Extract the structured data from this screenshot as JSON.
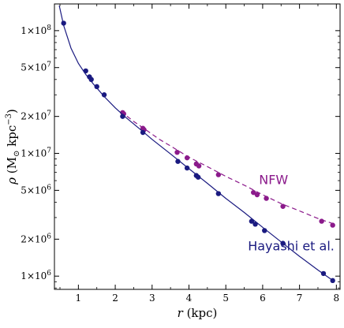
{
  "chart_data": {
    "type": "scatter",
    "xlabel": {
      "var": "r",
      "unit": "(kpc)"
    },
    "ylabel": {
      "var": "ρ",
      "unit": "(M",
      "sub": "⊙",
      "unit2": " kpc",
      "sup": "−3",
      "close": ")"
    },
    "xlim": [
      0.35,
      8.1
    ],
    "ylim": [
      780000,
      165000000
    ],
    "y_scale": "log",
    "grid": false,
    "x_ticks": [
      {
        "value": 1,
        "label": "1"
      },
      {
        "value": 2,
        "label": "2"
      },
      {
        "value": 3,
        "label": "3"
      },
      {
        "value": 4,
        "label": "4"
      },
      {
        "value": 5,
        "label": "5"
      },
      {
        "value": 6,
        "label": "6"
      },
      {
        "value": 7,
        "label": "7"
      },
      {
        "value": 8,
        "label": "8"
      }
    ],
    "y_ticks": [
      {
        "value": 1000000,
        "mant": "1",
        "exp": "6"
      },
      {
        "value": 2000000,
        "mant": "2",
        "exp": "6"
      },
      {
        "value": 5000000,
        "mant": "5",
        "exp": "6"
      },
      {
        "value": 10000000,
        "mant": "1",
        "exp": "7"
      },
      {
        "value": 20000000,
        "mant": "2",
        "exp": "7"
      },
      {
        "value": 50000000,
        "mant": "5",
        "exp": "7"
      },
      {
        "value": 100000000,
        "mant": "1",
        "exp": "8"
      }
    ],
    "series": [
      {
        "name": "NFW",
        "color": "#8b1a8b",
        "line_style": "dashed",
        "label_at": {
          "x": 5.9,
          "y": 5600000
        },
        "curve": [
          {
            "x": 2.15,
            "y": 22000000
          },
          {
            "x": 2.5,
            "y": 18200000
          },
          {
            "x": 2.8,
            "y": 15800000
          },
          {
            "x": 3.2,
            "y": 13000000
          },
          {
            "x": 3.5,
            "y": 11500000
          },
          {
            "x": 4.0,
            "y": 9300000
          },
          {
            "x": 4.5,
            "y": 7800000
          },
          {
            "x": 5.0,
            "y": 6500000
          },
          {
            "x": 5.5,
            "y": 5500000
          },
          {
            "x": 6.0,
            "y": 4600000
          },
          {
            "x": 6.5,
            "y": 3900000
          },
          {
            "x": 7.0,
            "y": 3400000
          },
          {
            "x": 7.5,
            "y": 2950000
          },
          {
            "x": 7.95,
            "y": 2650000
          }
        ],
        "points": [
          {
            "x": 2.2,
            "y": 21500000
          },
          {
            "x": 2.23,
            "y": 21000000
          },
          {
            "x": 2.75,
            "y": 16000000
          },
          {
            "x": 2.78,
            "y": 15600000
          },
          {
            "x": 3.68,
            "y": 10200000
          },
          {
            "x": 3.95,
            "y": 9200000
          },
          {
            "x": 4.2,
            "y": 8200000
          },
          {
            "x": 4.27,
            "y": 7900000
          },
          {
            "x": 4.8,
            "y": 6700000
          },
          {
            "x": 5.75,
            "y": 4800000
          },
          {
            "x": 5.85,
            "y": 4600000
          },
          {
            "x": 6.1,
            "y": 4300000
          },
          {
            "x": 6.55,
            "y": 3700000
          },
          {
            "x": 7.6,
            "y": 2800000
          },
          {
            "x": 7.9,
            "y": 2600000
          }
        ]
      },
      {
        "name": "Hayashi et al.",
        "color": "#1a1a80",
        "line_style": "solid",
        "label_at": {
          "x": 5.6,
          "y": 1620000
        },
        "curve": [
          {
            "x": 0.48,
            "y": 160000000
          },
          {
            "x": 0.6,
            "y": 110000000
          },
          {
            "x": 0.8,
            "y": 72000000
          },
          {
            "x": 1.0,
            "y": 54000000
          },
          {
            "x": 1.2,
            "y": 44000000
          },
          {
            "x": 1.4,
            "y": 37000000
          },
          {
            "x": 1.7,
            "y": 29000000
          },
          {
            "x": 2.0,
            "y": 23500000
          },
          {
            "x": 2.3,
            "y": 19500000
          },
          {
            "x": 2.7,
            "y": 15500000
          },
          {
            "x": 3.0,
            "y": 13000000
          },
          {
            "x": 3.5,
            "y": 9900000
          },
          {
            "x": 4.0,
            "y": 7500000
          },
          {
            "x": 4.5,
            "y": 5700000
          },
          {
            "x": 5.0,
            "y": 4300000
          },
          {
            "x": 5.5,
            "y": 3300000
          },
          {
            "x": 6.0,
            "y": 2500000
          },
          {
            "x": 6.5,
            "y": 1900000
          },
          {
            "x": 7.0,
            "y": 1450000
          },
          {
            "x": 7.5,
            "y": 1120000
          },
          {
            "x": 7.95,
            "y": 900000
          }
        ],
        "points": [
          {
            "x": 0.6,
            "y": 115000000
          },
          {
            "x": 1.2,
            "y": 47000000
          },
          {
            "x": 1.3,
            "y": 42000000
          },
          {
            "x": 1.35,
            "y": 40000000
          },
          {
            "x": 1.5,
            "y": 35000000
          },
          {
            "x": 1.7,
            "y": 30000000
          },
          {
            "x": 2.2,
            "y": 20000000
          },
          {
            "x": 2.75,
            "y": 14800000
          },
          {
            "x": 3.7,
            "y": 8600000
          },
          {
            "x": 3.95,
            "y": 7600000
          },
          {
            "x": 4.2,
            "y": 6600000
          },
          {
            "x": 4.25,
            "y": 6400000
          },
          {
            "x": 4.8,
            "y": 4700000
          },
          {
            "x": 5.7,
            "y": 2800000
          },
          {
            "x": 5.8,
            "y": 2650000
          },
          {
            "x": 6.05,
            "y": 2350000
          },
          {
            "x": 6.55,
            "y": 1850000
          },
          {
            "x": 7.65,
            "y": 1050000
          },
          {
            "x": 7.9,
            "y": 920000
          }
        ]
      }
    ]
  }
}
